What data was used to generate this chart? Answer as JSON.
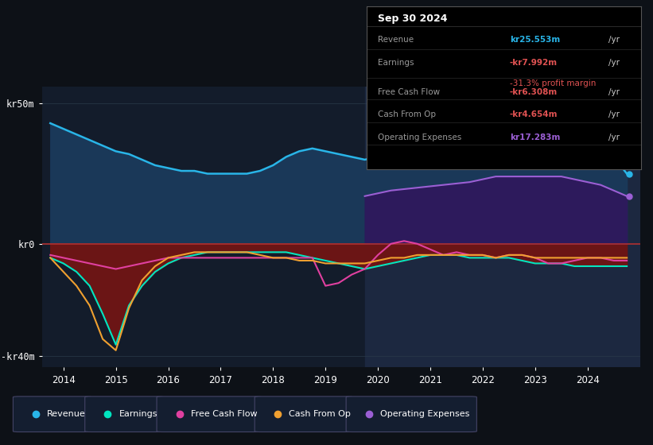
{
  "bg_color": "#0d1117",
  "plot_bg_color": "#131c2b",
  "plot_bg_highlight": "#1c2640",
  "ylim_min": -44,
  "ylim_max": 56,
  "revenue_color": "#29b5e8",
  "earnings_color": "#00e5c0",
  "fcf_color": "#e040a0",
  "cashop_color": "#f0a030",
  "opex_color": "#9b5fd4",
  "revenue_fill_color": "#1a3858",
  "earnings_fill_neg_color": "#6b1a1a",
  "opex_fill_color": "#3d1f6e",
  "zero_line_color": "#b03030",
  "grid_color": "#2a3a4a",
  "revenue_x": [
    2013.75,
    2014.0,
    2014.25,
    2014.5,
    2014.75,
    2015.0,
    2015.25,
    2015.5,
    2015.75,
    2016.0,
    2016.25,
    2016.5,
    2016.75,
    2017.0,
    2017.25,
    2017.5,
    2017.75,
    2018.0,
    2018.25,
    2018.5,
    2018.75,
    2019.0,
    2019.25,
    2019.5,
    2019.75,
    2020.0,
    2020.25,
    2020.5,
    2020.75,
    2021.0,
    2021.25,
    2021.5,
    2021.75,
    2022.0,
    2022.25,
    2022.5,
    2022.75,
    2023.0,
    2023.25,
    2023.5,
    2023.75,
    2024.0,
    2024.25,
    2024.5,
    2024.75
  ],
  "revenue_y": [
    43,
    41,
    39,
    37,
    35,
    33,
    32,
    30,
    28,
    27,
    26,
    26,
    25,
    25,
    25,
    25,
    26,
    28,
    31,
    33,
    34,
    33,
    32,
    31,
    30,
    31,
    32,
    33,
    34,
    35,
    36,
    37,
    38,
    38,
    39,
    40,
    40,
    41,
    42,
    42,
    41,
    40,
    36,
    31,
    25
  ],
  "earnings_x": [
    2013.75,
    2014.0,
    2014.25,
    2014.5,
    2014.75,
    2015.0,
    2015.25,
    2015.5,
    2015.75,
    2016.0,
    2016.25,
    2016.5,
    2016.75,
    2017.0,
    2017.25,
    2017.5,
    2017.75,
    2018.0,
    2018.25,
    2018.5,
    2018.75,
    2019.0,
    2019.25,
    2019.5,
    2019.75,
    2020.0,
    2020.25,
    2020.5,
    2020.75,
    2021.0,
    2021.25,
    2021.5,
    2021.75,
    2022.0,
    2022.25,
    2022.5,
    2022.75,
    2023.0,
    2023.25,
    2023.5,
    2023.75,
    2024.0,
    2024.25,
    2024.5,
    2024.75
  ],
  "earnings_y": [
    -5,
    -7,
    -10,
    -15,
    -25,
    -36,
    -22,
    -15,
    -10,
    -7,
    -5,
    -4,
    -3,
    -3,
    -3,
    -3,
    -3,
    -3,
    -3,
    -4,
    -5,
    -6,
    -7,
    -8,
    -9,
    -8,
    -7,
    -6,
    -5,
    -4,
    -4,
    -4,
    -5,
    -5,
    -5,
    -5,
    -6,
    -7,
    -7,
    -7,
    -8,
    -8,
    -8,
    -8,
    -8
  ],
  "fcf_x": [
    2013.75,
    2014.0,
    2014.25,
    2014.5,
    2014.75,
    2015.0,
    2015.25,
    2015.5,
    2015.75,
    2016.0,
    2016.25,
    2016.5,
    2016.75,
    2017.0,
    2017.25,
    2017.5,
    2017.75,
    2018.0,
    2018.25,
    2018.5,
    2018.75,
    2019.0,
    2019.25,
    2019.5,
    2019.75,
    2020.0,
    2020.25,
    2020.5,
    2020.75,
    2021.0,
    2021.25,
    2021.5,
    2021.75,
    2022.0,
    2022.25,
    2022.5,
    2022.75,
    2023.0,
    2023.25,
    2023.5,
    2023.75,
    2024.0,
    2024.25,
    2024.5,
    2024.75
  ],
  "fcf_y": [
    -4,
    -5,
    -6,
    -7,
    -8,
    -9,
    -8,
    -7,
    -6,
    -5,
    -5,
    -5,
    -5,
    -5,
    -5,
    -5,
    -5,
    -5,
    -5,
    -5,
    -5,
    -15,
    -14,
    -11,
    -9,
    -4,
    0,
    1,
    0,
    -2,
    -4,
    -3,
    -4,
    -4,
    -5,
    -4,
    -4,
    -5,
    -7,
    -7,
    -6,
    -5,
    -5,
    -6,
    -6
  ],
  "cashop_x": [
    2013.75,
    2014.0,
    2014.25,
    2014.5,
    2014.75,
    2015.0,
    2015.25,
    2015.5,
    2015.75,
    2016.0,
    2016.25,
    2016.5,
    2016.75,
    2017.0,
    2017.25,
    2017.5,
    2017.75,
    2018.0,
    2018.25,
    2018.5,
    2018.75,
    2019.0,
    2019.25,
    2019.5,
    2019.75,
    2020.0,
    2020.25,
    2020.5,
    2020.75,
    2021.0,
    2021.25,
    2021.5,
    2021.75,
    2022.0,
    2022.25,
    2022.5,
    2022.75,
    2023.0,
    2023.25,
    2023.5,
    2023.75,
    2024.0,
    2024.25,
    2024.5,
    2024.75
  ],
  "cashop_y": [
    -5,
    -10,
    -15,
    -22,
    -34,
    -38,
    -23,
    -13,
    -8,
    -5,
    -4,
    -3,
    -3,
    -3,
    -3,
    -3,
    -4,
    -5,
    -5,
    -6,
    -6,
    -7,
    -7,
    -7,
    -7,
    -6,
    -5,
    -5,
    -4,
    -4,
    -4,
    -4,
    -4,
    -4,
    -5,
    -4,
    -4,
    -5,
    -5,
    -5,
    -5,
    -5,
    -5,
    -5,
    -5
  ],
  "opex_x": [
    2019.75,
    2020.0,
    2020.25,
    2020.5,
    2020.75,
    2021.0,
    2021.25,
    2021.5,
    2021.75,
    2022.0,
    2022.25,
    2022.5,
    2022.75,
    2023.0,
    2023.25,
    2023.5,
    2023.75,
    2024.0,
    2024.25,
    2024.5,
    2024.75
  ],
  "opex_y": [
    17,
    18,
    19,
    19.5,
    20,
    20.5,
    21,
    21.5,
    22,
    23,
    24,
    24,
    24,
    24,
    24,
    24,
    23,
    22,
    21,
    19,
    17
  ],
  "legend_labels": [
    "Revenue",
    "Earnings",
    "Free Cash Flow",
    "Cash From Op",
    "Operating Expenses"
  ],
  "legend_colors": [
    "#29b5e8",
    "#00e5c0",
    "#e040a0",
    "#f0a030",
    "#9b5fd4"
  ],
  "info_title": "Sep 30 2024",
  "info_rows": [
    {
      "label": "Revenue",
      "value": "kr25.553m",
      "suffix": " /yr",
      "vcolor": "#29b5e8",
      "sub": null
    },
    {
      "label": "Earnings",
      "value": "-kr7.992m",
      "suffix": " /yr",
      "vcolor": "#e05252",
      "sub": "-31.3% profit margin"
    },
    {
      "label": "Free Cash Flow",
      "value": "-kr6.308m",
      "suffix": " /yr",
      "vcolor": "#e05252",
      "sub": null
    },
    {
      "label": "Cash From Op",
      "value": "-kr4.654m",
      "suffix": " /yr",
      "vcolor": "#e05252",
      "sub": null
    },
    {
      "label": "Operating Expenses",
      "value": "kr17.283m",
      "suffix": " /yr",
      "vcolor": "#9b5fd4",
      "sub": null
    }
  ]
}
